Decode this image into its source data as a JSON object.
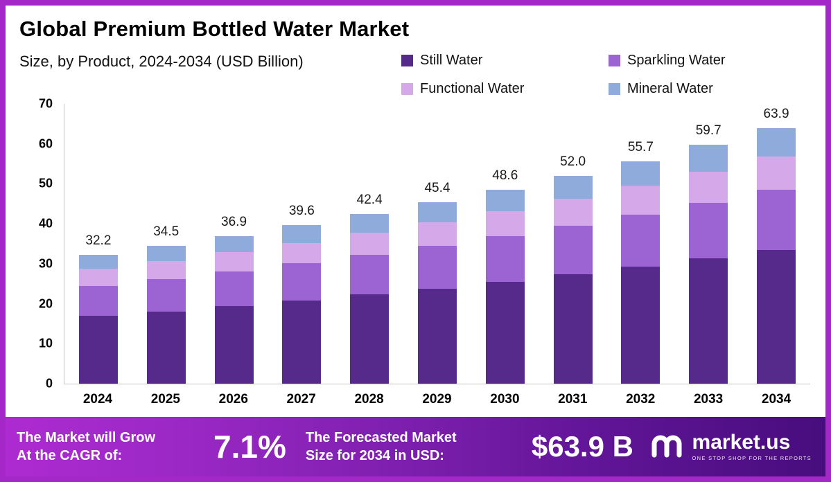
{
  "title": "Global Premium Bottled Water Market",
  "subtitle": "Size, by Product, 2024-2034 (USD Billion)",
  "colors": {
    "frame": "#A428C8",
    "still_water": "#552A8B",
    "sparkling_water": "#9C64D3",
    "functional_water": "#D5A9E9",
    "mineral_water": "#8FABDC"
  },
  "chart_data": {
    "type": "bar",
    "stacked": true,
    "title": "Global Premium Bottled Water Market",
    "subtitle": "Size, by Product, 2024-2034 (USD Billion)",
    "xlabel": "",
    "ylabel": "",
    "ylim": [
      0,
      70
    ],
    "yticks": [
      0,
      10,
      20,
      30,
      40,
      50,
      60,
      70
    ],
    "grid": false,
    "legend_position": "top-right",
    "categories": [
      "2024",
      "2025",
      "2026",
      "2027",
      "2028",
      "2029",
      "2030",
      "2031",
      "2032",
      "2033",
      "2034"
    ],
    "series": [
      {
        "name": "Still Water",
        "color": "#552A8B",
        "values": [
          16.9,
          18.1,
          19.4,
          20.8,
          22.3,
          23.8,
          25.5,
          27.3,
          29.2,
          31.3,
          33.5
        ]
      },
      {
        "name": "Sparkling Water",
        "color": "#9C64D3",
        "values": [
          7.6,
          8.1,
          8.7,
          9.3,
          10.0,
          10.7,
          11.4,
          12.2,
          13.1,
          14.0,
          15.0
        ]
      },
      {
        "name": "Functional Water",
        "color": "#D5A9E9",
        "values": [
          4.2,
          4.5,
          4.8,
          5.1,
          5.5,
          5.9,
          6.3,
          6.8,
          7.2,
          7.8,
          8.3
        ]
      },
      {
        "name": "Mineral Water",
        "color": "#8FABDC",
        "values": [
          3.5,
          3.8,
          4.0,
          4.4,
          4.6,
          5.0,
          5.4,
          5.7,
          6.2,
          6.6,
          7.1
        ]
      }
    ],
    "totals": [
      32.2,
      34.5,
      36.9,
      39.6,
      42.4,
      45.4,
      48.6,
      52.0,
      55.7,
      59.7,
      63.9
    ],
    "total_labels": [
      "32.2",
      "34.5",
      "36.9",
      "39.6",
      "42.4",
      "45.4",
      "48.6",
      "52.0",
      "55.7",
      "59.7",
      "63.9"
    ]
  },
  "banner": {
    "cagr_label_line1": "The Market will Grow",
    "cagr_label_line2": "At the CAGR of:",
    "cagr_value": "7.1%",
    "forecast_label_line1": "The Forecasted Market",
    "forecast_label_line2": "Size for 2034 in USD:",
    "forecast_value": "$63.9 B",
    "brand_name": "market.us",
    "brand_tagline": "ONE STOP SHOP FOR THE REPORTS"
  }
}
